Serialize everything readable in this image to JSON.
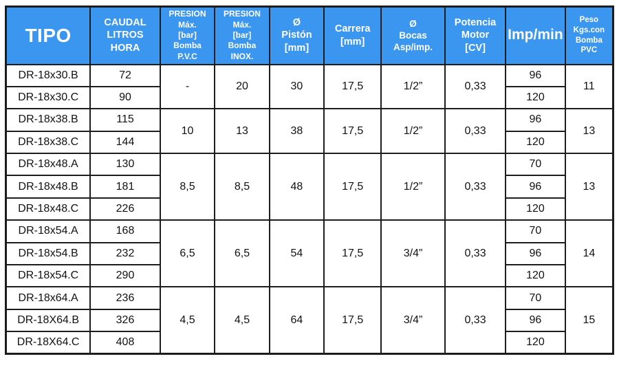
{
  "table": {
    "columns": [
      {
        "id": "tipo",
        "label": "TIPO",
        "size": "xl"
      },
      {
        "id": "caudal",
        "label": "CAUDAL\nLITROS\nHORA",
        "size": "md"
      },
      {
        "id": "presion_pvc",
        "label": "PRESION\nMáx.\n[bar]\nBomba\nP.V.C",
        "size": "sm"
      },
      {
        "id": "presion_inox",
        "label": "PRESION\nMáx.\n[bar]\nBomba\nINOX.",
        "size": "sm"
      },
      {
        "id": "piston",
        "label": "Ø\nPistón\n[mm]",
        "size": "md"
      },
      {
        "id": "carrera",
        "label": "Carrera\n[mm]",
        "size": "md"
      },
      {
        "id": "bocas",
        "label": "Ø\nBocas\nAsp/imp.",
        "size": "sm2"
      },
      {
        "id": "potencia",
        "label": "Potencia\nMotor\n[CV]",
        "size": "md"
      },
      {
        "id": "imp",
        "label": "Imp/min",
        "size": "lg"
      },
      {
        "id": "peso",
        "label": "Peso\nKgs.con\nBomba\nPVC",
        "size": "xs"
      }
    ],
    "groups": [
      {
        "presion_pvc": "-",
        "presion_inox": "20",
        "piston": "30",
        "carrera": "17,5",
        "bocas": "1/2”",
        "potencia": "0,33",
        "peso": "11",
        "models": [
          {
            "tipo": "DR-18x30.B",
            "caudal": "72",
            "imp": "96"
          },
          {
            "tipo": "DR-18x30.C",
            "caudal": "90",
            "imp": "120"
          }
        ]
      },
      {
        "presion_pvc": "10",
        "presion_inox": "13",
        "piston": "38",
        "carrera": "17,5",
        "bocas": "1/2”",
        "potencia": "0,33",
        "peso": "13",
        "models": [
          {
            "tipo": "DR-18x38.B",
            "caudal": "115",
            "imp": "96"
          },
          {
            "tipo": "DR-18x38.C",
            "caudal": "144",
            "imp": "120"
          }
        ]
      },
      {
        "presion_pvc": "8,5",
        "presion_inox": "8,5",
        "piston": "48",
        "carrera": "17,5",
        "bocas": "1/2”",
        "potencia": "0,33",
        "peso": "13",
        "models": [
          {
            "tipo": "DR-18x48.A",
            "caudal": "130",
            "imp": "70"
          },
          {
            "tipo": "DR-18x48.B",
            "caudal": "181",
            "imp": "96"
          },
          {
            "tipo": "DR-18x48.C",
            "caudal": "226",
            "imp": "120"
          }
        ]
      },
      {
        "presion_pvc": "6,5",
        "presion_inox": "6,5",
        "piston": "54",
        "carrera": "17,5",
        "bocas": "3/4”",
        "potencia": "0,33",
        "peso": "14",
        "models": [
          {
            "tipo": "DR-18x54.A",
            "caudal": "168",
            "imp": "70"
          },
          {
            "tipo": "DR-18x54.B",
            "caudal": "232",
            "imp": "96"
          },
          {
            "tipo": "DR-18x54.C",
            "caudal": "290",
            "imp": "120"
          }
        ]
      },
      {
        "presion_pvc": "4,5",
        "presion_inox": "4,5",
        "piston": "64",
        "carrera": "17,5",
        "bocas": "3/4”",
        "potencia": "0,33",
        "peso": "15",
        "models": [
          {
            "tipo": "DR-18x64.A",
            "caudal": "236",
            "imp": "70"
          },
          {
            "tipo": "DR-18X64.B",
            "caudal": "326",
            "imp": "96"
          },
          {
            "tipo": "DR-18X64.C",
            "caudal": "408",
            "imp": "120"
          }
        ]
      }
    ]
  },
  "colors": {
    "header_bg": "#3B96EF",
    "header_text": "#FFFFFF",
    "body_bg": "#FFFFFF",
    "body_text": "#111111",
    "border": "#1C1C1C"
  }
}
